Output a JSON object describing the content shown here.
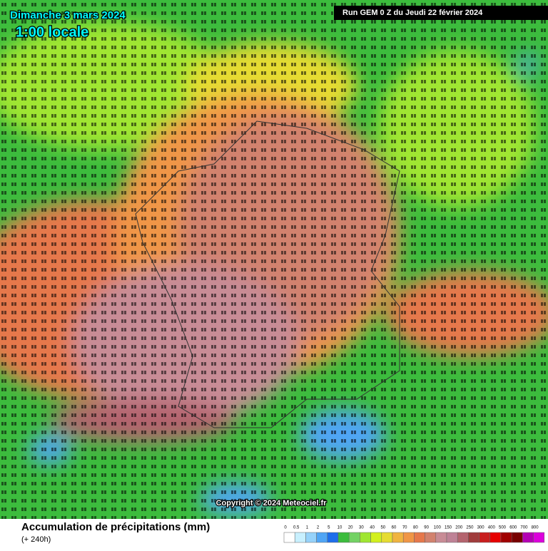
{
  "header": {
    "date": "Dimanche 3 mars 2024",
    "time": "1:00 locale",
    "run": "Run GEM 0 Z du Jeudi 22 février 2024"
  },
  "map": {
    "copyright": "Copyright © 2024 Meteociel.fr"
  },
  "footer": {
    "title": "Accumulation de précipitations (mm)",
    "subtitle": "(+ 240h)"
  },
  "legend": {
    "ticks": [
      0,
      0.5,
      1,
      2,
      5,
      10,
      20,
      30,
      40,
      50,
      60,
      70,
      80,
      90,
      100,
      150,
      200,
      250,
      300,
      400,
      500,
      600,
      700,
      800
    ],
    "colors": [
      "#ffffff",
      "#c8f0ff",
      "#96d2fa",
      "#50a5f5",
      "#1e6eeb",
      "#3cbc3d",
      "#73d264",
      "#a0e632",
      "#d2f01e",
      "#e6dc32",
      "#f0b440",
      "#f09646",
      "#e6784b",
      "#d2826e",
      "#c88c96",
      "#be8296",
      "#b4646e",
      "#a03c3c",
      "#c81e1e",
      "#e60000",
      "#a00000",
      "#780000",
      "#b400b4",
      "#dc00dc"
    ]
  }
}
